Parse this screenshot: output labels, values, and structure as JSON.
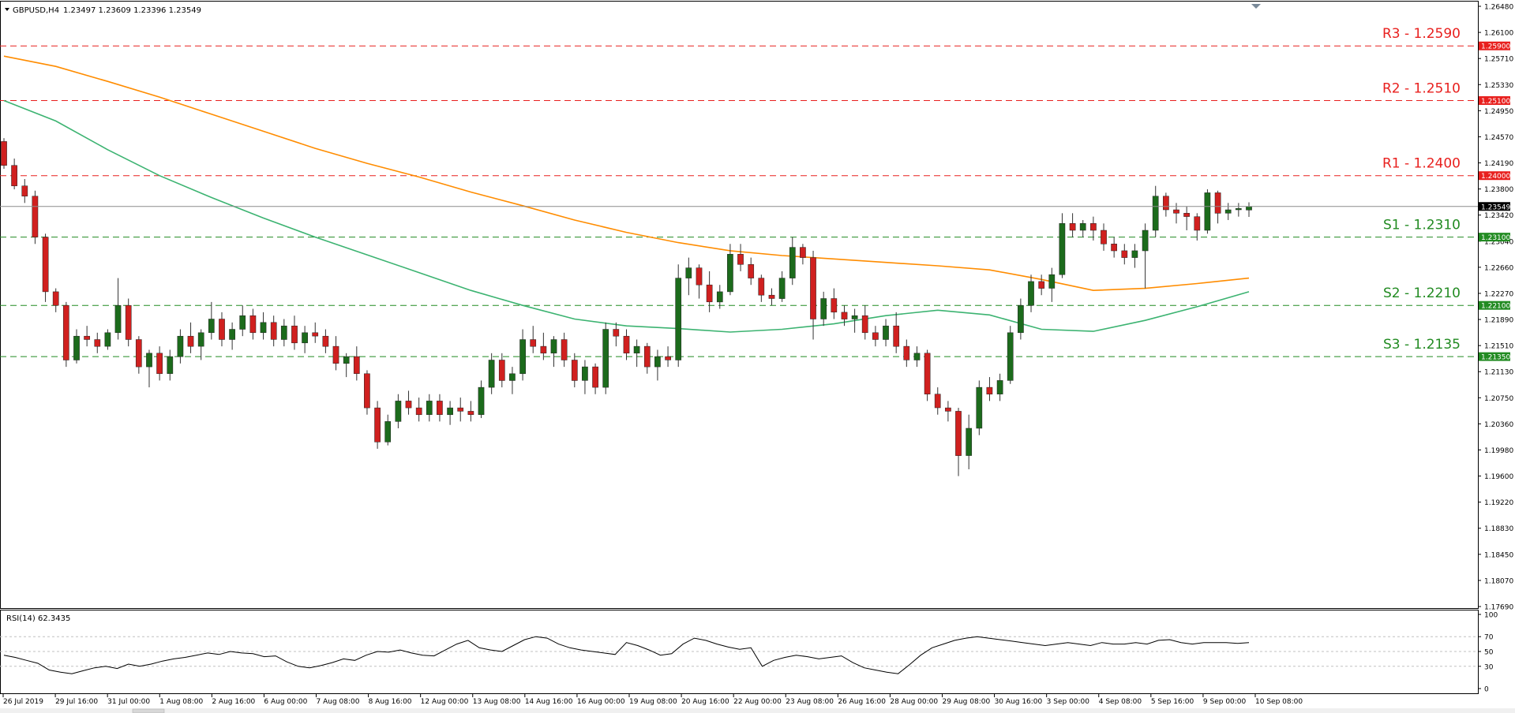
{
  "header": {
    "symbol_label": "GBPUSD,H4",
    "ohlc": "1.23497 1.23609 1.23396 1.23549"
  },
  "rsi_panel": {
    "label": "RSI(14) 62.3435",
    "value": 62.3435,
    "levels": [
      70,
      50,
      30
    ],
    "tick_labels": [
      "100",
      "70",
      "50",
      "30",
      "0"
    ]
  },
  "colors": {
    "bull": "#1c6b1c",
    "bear": "#d0201f",
    "wick": "#333333",
    "ma_fast": "#3cb371",
    "ma_slow": "#ff8c00",
    "resistance": "#e8201e",
    "support": "#228b22",
    "price_line": "#8c8c8c"
  },
  "chart_data": {
    "type": "candlestick",
    "symbol": "GBPUSD",
    "timeframe": "H4",
    "ylim": [
      1.1769,
      1.2648
    ],
    "y_tick_labels": [
      "1.26480",
      "1.26100",
      "1.25710",
      "1.25330",
      "1.24950",
      "1.24570",
      "1.24190",
      "1.23800",
      "1.23420",
      "1.23040",
      "1.22660",
      "1.22270",
      "1.21890",
      "1.21510",
      "1.21130",
      "1.20750",
      "1.20360",
      "1.19980",
      "1.19600",
      "1.19220",
      "1.18830",
      "1.18450",
      "1.18070",
      "1.17690"
    ],
    "x_tick_labels": [
      "26 Jul 2019",
      "29 Jul 16:00",
      "31 Jul 00:00",
      "1 Aug 08:00",
      "2 Aug 16:00",
      "6 Aug 00:00",
      "7 Aug 08:00",
      "8 Aug 16:00",
      "12 Aug 00:00",
      "13 Aug 08:00",
      "14 Aug 16:00",
      "16 Aug 00:00",
      "19 Aug 08:00",
      "20 Aug 16:00",
      "22 Aug 00:00",
      "23 Aug 08:00",
      "26 Aug 16:00",
      "28 Aug 00:00",
      "29 Aug 08:00",
      "30 Aug 16:00",
      "3 Sep 00:00",
      "4 Sep 08:00",
      "5 Sep 16:00",
      "9 Sep 00:00",
      "10 Sep 08:00"
    ],
    "current_price": 1.23549,
    "current_price_label": "1.23549",
    "levels": [
      {
        "name": "R3 - 1.2590",
        "tag": "1.25900",
        "value": 1.259,
        "kind": "resistance"
      },
      {
        "name": "R2 - 1.2510",
        "tag": "1.25100",
        "value": 1.251,
        "kind": "resistance"
      },
      {
        "name": "R1 - 1.2400",
        "tag": "1.24000",
        "value": 1.24,
        "kind": "resistance"
      },
      {
        "name": "S1 - 1.2310",
        "tag": "1.23100",
        "value": 1.231,
        "kind": "support"
      },
      {
        "name": "S2 - 1.2210",
        "tag": "1.22100",
        "value": 1.221,
        "kind": "support"
      },
      {
        "name": "S3 - 1.2135",
        "tag": "1.21350",
        "value": 1.2135,
        "kind": "support"
      }
    ],
    "moving_averages": [
      {
        "key": "ma_slow",
        "values": [
          1.2575,
          1.256,
          1.2538,
          1.2515,
          1.249,
          1.2465,
          1.244,
          1.2418,
          1.2398,
          1.2376,
          1.2356,
          1.2335,
          1.2317,
          1.2302,
          1.229,
          1.2283,
          1.2278,
          1.2273,
          1.2268,
          1.2262,
          1.2248,
          1.2232,
          1.2235,
          1.2242,
          1.225
        ]
      },
      {
        "key": "ma_fast",
        "values": [
          1.251,
          1.248,
          1.2438,
          1.24,
          1.2368,
          1.2338,
          1.231,
          1.2284,
          1.2258,
          1.2232,
          1.221,
          1.219,
          1.218,
          1.2176,
          1.2171,
          1.2175,
          1.2183,
          1.2195,
          1.2203,
          1.2196,
          1.2175,
          1.2172,
          1.2188,
          1.2208,
          1.223
        ]
      }
    ],
    "candles": [
      {
        "o": 1.245,
        "h": 1.2455,
        "l": 1.241,
        "c": 1.2415
      },
      {
        "o": 1.2415,
        "h": 1.2425,
        "l": 1.238,
        "c": 1.2385
      },
      {
        "o": 1.2385,
        "h": 1.2395,
        "l": 1.236,
        "c": 1.237
      },
      {
        "o": 1.237,
        "h": 1.2378,
        "l": 1.23,
        "c": 1.231
      },
      {
        "o": 1.231,
        "h": 1.2315,
        "l": 1.2215,
        "c": 1.223
      },
      {
        "o": 1.223,
        "h": 1.2235,
        "l": 1.22,
        "c": 1.221
      },
      {
        "o": 1.221,
        "h": 1.2215,
        "l": 1.212,
        "c": 1.213
      },
      {
        "o": 1.213,
        "h": 1.2175,
        "l": 1.2125,
        "c": 1.2165
      },
      {
        "o": 1.2165,
        "h": 1.218,
        "l": 1.215,
        "c": 1.216
      },
      {
        "o": 1.216,
        "h": 1.217,
        "l": 1.214,
        "c": 1.215
      },
      {
        "o": 1.215,
        "h": 1.2175,
        "l": 1.2145,
        "c": 1.217
      },
      {
        "o": 1.217,
        "h": 1.225,
        "l": 1.216,
        "c": 1.221
      },
      {
        "o": 1.221,
        "h": 1.222,
        "l": 1.215,
        "c": 1.216
      },
      {
        "o": 1.216,
        "h": 1.2165,
        "l": 1.211,
        "c": 1.212
      },
      {
        "o": 1.212,
        "h": 1.2145,
        "l": 1.209,
        "c": 1.214
      },
      {
        "o": 1.214,
        "h": 1.215,
        "l": 1.21,
        "c": 1.211
      },
      {
        "o": 1.211,
        "h": 1.2145,
        "l": 1.21,
        "c": 1.2135
      },
      {
        "o": 1.2135,
        "h": 1.2175,
        "l": 1.2125,
        "c": 1.2165
      },
      {
        "o": 1.2165,
        "h": 1.2185,
        "l": 1.214,
        "c": 1.215
      },
      {
        "o": 1.215,
        "h": 1.2175,
        "l": 1.213,
        "c": 1.217
      },
      {
        "o": 1.217,
        "h": 1.2215,
        "l": 1.216,
        "c": 1.219
      },
      {
        "o": 1.219,
        "h": 1.22,
        "l": 1.215,
        "c": 1.216
      },
      {
        "o": 1.216,
        "h": 1.2185,
        "l": 1.2145,
        "c": 1.2175
      },
      {
        "o": 1.2175,
        "h": 1.221,
        "l": 1.2165,
        "c": 1.2195
      },
      {
        "o": 1.2195,
        "h": 1.2205,
        "l": 1.216,
        "c": 1.217
      },
      {
        "o": 1.217,
        "h": 1.22,
        "l": 1.216,
        "c": 1.2185
      },
      {
        "o": 1.2185,
        "h": 1.2195,
        "l": 1.215,
        "c": 1.216
      },
      {
        "o": 1.216,
        "h": 1.219,
        "l": 1.215,
        "c": 1.218
      },
      {
        "o": 1.218,
        "h": 1.2195,
        "l": 1.2145,
        "c": 1.2155
      },
      {
        "o": 1.2155,
        "h": 1.218,
        "l": 1.214,
        "c": 1.217
      },
      {
        "o": 1.217,
        "h": 1.2185,
        "l": 1.2155,
        "c": 1.2165
      },
      {
        "o": 1.2165,
        "h": 1.2175,
        "l": 1.214,
        "c": 1.215
      },
      {
        "o": 1.215,
        "h": 1.2165,
        "l": 1.2115,
        "c": 1.2125
      },
      {
        "o": 1.2125,
        "h": 1.214,
        "l": 1.2105,
        "c": 1.2135
      },
      {
        "o": 1.2135,
        "h": 1.215,
        "l": 1.21,
        "c": 1.211
      },
      {
        "o": 1.211,
        "h": 1.2115,
        "l": 1.205,
        "c": 1.206
      },
      {
        "o": 1.206,
        "h": 1.207,
        "l": 1.2,
        "c": 1.201
      },
      {
        "o": 1.201,
        "h": 1.205,
        "l": 1.2005,
        "c": 1.204
      },
      {
        "o": 1.204,
        "h": 1.208,
        "l": 1.203,
        "c": 1.207
      },
      {
        "o": 1.207,
        "h": 1.2085,
        "l": 1.205,
        "c": 1.206
      },
      {
        "o": 1.206,
        "h": 1.2075,
        "l": 1.204,
        "c": 1.205
      },
      {
        "o": 1.205,
        "h": 1.208,
        "l": 1.204,
        "c": 1.207
      },
      {
        "o": 1.207,
        "h": 1.208,
        "l": 1.204,
        "c": 1.205
      },
      {
        "o": 1.205,
        "h": 1.207,
        "l": 1.2035,
        "c": 1.206
      },
      {
        "o": 1.206,
        "h": 1.2075,
        "l": 1.204,
        "c": 1.2055
      },
      {
        "o": 1.2055,
        "h": 1.207,
        "l": 1.204,
        "c": 1.205
      },
      {
        "o": 1.205,
        "h": 1.21,
        "l": 1.2045,
        "c": 1.209
      },
      {
        "o": 1.209,
        "h": 1.214,
        "l": 1.208,
        "c": 1.213
      },
      {
        "o": 1.213,
        "h": 1.214,
        "l": 1.209,
        "c": 1.21
      },
      {
        "o": 1.21,
        "h": 1.212,
        "l": 1.208,
        "c": 1.211
      },
      {
        "o": 1.211,
        "h": 1.2175,
        "l": 1.21,
        "c": 1.216
      },
      {
        "o": 1.216,
        "h": 1.218,
        "l": 1.214,
        "c": 1.215
      },
      {
        "o": 1.215,
        "h": 1.217,
        "l": 1.213,
        "c": 1.214
      },
      {
        "o": 1.214,
        "h": 1.2165,
        "l": 1.212,
        "c": 1.216
      },
      {
        "o": 1.216,
        "h": 1.217,
        "l": 1.212,
        "c": 1.213
      },
      {
        "o": 1.213,
        "h": 1.214,
        "l": 1.209,
        "c": 1.21
      },
      {
        "o": 1.21,
        "h": 1.213,
        "l": 1.208,
        "c": 1.212
      },
      {
        "o": 1.212,
        "h": 1.2125,
        "l": 1.208,
        "c": 1.209
      },
      {
        "o": 1.209,
        "h": 1.2185,
        "l": 1.208,
        "c": 1.2175
      },
      {
        "o": 1.2175,
        "h": 1.2185,
        "l": 1.215,
        "c": 1.2165
      },
      {
        "o": 1.2165,
        "h": 1.2175,
        "l": 1.213,
        "c": 1.214
      },
      {
        "o": 1.214,
        "h": 1.216,
        "l": 1.212,
        "c": 1.215
      },
      {
        "o": 1.215,
        "h": 1.2155,
        "l": 1.211,
        "c": 1.212
      },
      {
        "o": 1.212,
        "h": 1.2145,
        "l": 1.21,
        "c": 1.2135
      },
      {
        "o": 1.2135,
        "h": 1.215,
        "l": 1.212,
        "c": 1.213
      },
      {
        "o": 1.213,
        "h": 1.227,
        "l": 1.212,
        "c": 1.225
      },
      {
        "o": 1.225,
        "h": 1.228,
        "l": 1.2225,
        "c": 1.2265
      },
      {
        "o": 1.2265,
        "h": 1.227,
        "l": 1.222,
        "c": 1.224
      },
      {
        "o": 1.224,
        "h": 1.226,
        "l": 1.22,
        "c": 1.2215
      },
      {
        "o": 1.2215,
        "h": 1.224,
        "l": 1.2205,
        "c": 1.223
      },
      {
        "o": 1.223,
        "h": 1.23,
        "l": 1.2225,
        "c": 1.2285
      },
      {
        "o": 1.2285,
        "h": 1.23,
        "l": 1.226,
        "c": 1.227
      },
      {
        "o": 1.227,
        "h": 1.228,
        "l": 1.224,
        "c": 1.225
      },
      {
        "o": 1.225,
        "h": 1.2255,
        "l": 1.2215,
        "c": 1.2225
      },
      {
        "o": 1.2225,
        "h": 1.2235,
        "l": 1.221,
        "c": 1.222
      },
      {
        "o": 1.222,
        "h": 1.226,
        "l": 1.2215,
        "c": 1.225
      },
      {
        "o": 1.225,
        "h": 1.231,
        "l": 1.224,
        "c": 1.2295
      },
      {
        "o": 1.2295,
        "h": 1.23,
        "l": 1.227,
        "c": 1.228
      },
      {
        "o": 1.228,
        "h": 1.229,
        "l": 1.216,
        "c": 1.219
      },
      {
        "o": 1.219,
        "h": 1.223,
        "l": 1.218,
        "c": 1.222
      },
      {
        "o": 1.222,
        "h": 1.2235,
        "l": 1.219,
        "c": 1.22
      },
      {
        "o": 1.22,
        "h": 1.221,
        "l": 1.218,
        "c": 1.219
      },
      {
        "o": 1.219,
        "h": 1.2205,
        "l": 1.217,
        "c": 1.2195
      },
      {
        "o": 1.2195,
        "h": 1.221,
        "l": 1.216,
        "c": 1.217
      },
      {
        "o": 1.217,
        "h": 1.218,
        "l": 1.215,
        "c": 1.216
      },
      {
        "o": 1.216,
        "h": 1.219,
        "l": 1.215,
        "c": 1.218
      },
      {
        "o": 1.218,
        "h": 1.22,
        "l": 1.214,
        "c": 1.215
      },
      {
        "o": 1.215,
        "h": 1.216,
        "l": 1.212,
        "c": 1.213
      },
      {
        "o": 1.213,
        "h": 1.215,
        "l": 1.212,
        "c": 1.214
      },
      {
        "o": 1.214,
        "h": 1.2145,
        "l": 1.207,
        "c": 1.208
      },
      {
        "o": 1.208,
        "h": 1.209,
        "l": 1.205,
        "c": 1.206
      },
      {
        "o": 1.206,
        "h": 1.207,
        "l": 1.204,
        "c": 1.2055
      },
      {
        "o": 1.2055,
        "h": 1.206,
        "l": 1.196,
        "c": 1.199
      },
      {
        "o": 1.199,
        "h": 1.205,
        "l": 1.197,
        "c": 1.203
      },
      {
        "o": 1.203,
        "h": 1.21,
        "l": 1.202,
        "c": 1.209
      },
      {
        "o": 1.209,
        "h": 1.2105,
        "l": 1.207,
        "c": 1.208
      },
      {
        "o": 1.208,
        "h": 1.211,
        "l": 1.207,
        "c": 1.21
      },
      {
        "o": 1.21,
        "h": 1.218,
        "l": 1.2095,
        "c": 1.217
      },
      {
        "o": 1.217,
        "h": 1.222,
        "l": 1.216,
        "c": 1.221
      },
      {
        "o": 1.221,
        "h": 1.2255,
        "l": 1.22,
        "c": 1.2245
      },
      {
        "o": 1.2245,
        "h": 1.2255,
        "l": 1.2225,
        "c": 1.2235
      },
      {
        "o": 1.2235,
        "h": 1.2265,
        "l": 1.2215,
        "c": 1.2255
      },
      {
        "o": 1.2255,
        "h": 1.2345,
        "l": 1.225,
        "c": 1.233
      },
      {
        "o": 1.233,
        "h": 1.2345,
        "l": 1.231,
        "c": 1.232
      },
      {
        "o": 1.232,
        "h": 1.2335,
        "l": 1.231,
        "c": 1.233
      },
      {
        "o": 1.233,
        "h": 1.234,
        "l": 1.2305,
        "c": 1.232
      },
      {
        "o": 1.232,
        "h": 1.233,
        "l": 1.229,
        "c": 1.23
      },
      {
        "o": 1.23,
        "h": 1.231,
        "l": 1.228,
        "c": 1.229
      },
      {
        "o": 1.229,
        "h": 1.23,
        "l": 1.227,
        "c": 1.228
      },
      {
        "o": 1.228,
        "h": 1.23,
        "l": 1.2265,
        "c": 1.229
      },
      {
        "o": 1.229,
        "h": 1.233,
        "l": 1.2235,
        "c": 1.232
      },
      {
        "o": 1.232,
        "h": 1.2385,
        "l": 1.231,
        "c": 1.237
      },
      {
        "o": 1.237,
        "h": 1.2375,
        "l": 1.234,
        "c": 1.235
      },
      {
        "o": 1.235,
        "h": 1.236,
        "l": 1.233,
        "c": 1.2345
      },
      {
        "o": 1.2345,
        "h": 1.2355,
        "l": 1.232,
        "c": 1.234
      },
      {
        "o": 1.234,
        "h": 1.2345,
        "l": 1.2305,
        "c": 1.232
      },
      {
        "o": 1.232,
        "h": 1.238,
        "l": 1.2315,
        "c": 1.2375
      },
      {
        "o": 1.2375,
        "h": 1.2378,
        "l": 1.233,
        "c": 1.2345
      },
      {
        "o": 1.2345,
        "h": 1.236,
        "l": 1.2335,
        "c": 1.235
      },
      {
        "o": 1.235,
        "h": 1.236,
        "l": 1.234,
        "c": 1.2352
      },
      {
        "o": 1.23497,
        "h": 1.23609,
        "l": 1.23396,
        "c": 1.23549
      }
    ],
    "rsi": [
      45,
      42,
      38,
      34,
      25,
      22,
      20,
      24,
      28,
      30,
      27,
      33,
      30,
      33,
      37,
      40,
      42,
      45,
      48,
      46,
      50,
      48,
      47,
      43,
      44,
      36,
      30,
      28,
      31,
      35,
      40,
      38,
      45,
      50,
      49,
      52,
      48,
      45,
      44,
      52,
      60,
      65,
      55,
      52,
      50,
      58,
      66,
      70,
      68,
      60,
      55,
      52,
      50,
      48,
      46,
      62,
      58,
      52,
      45,
      47,
      60,
      68,
      65,
      60,
      56,
      53,
      55,
      30,
      38,
      42,
      45,
      43,
      40,
      42,
      44,
      35,
      28,
      25,
      22,
      20,
      32,
      45,
      55,
      60,
      65,
      68,
      70,
      68,
      66,
      64,
      62,
      60,
      58,
      60,
      62,
      60,
      58,
      62,
      60,
      60,
      62,
      60,
      65,
      66,
      62,
      60,
      62,
      62,
      62,
      61,
      62
    ]
  }
}
